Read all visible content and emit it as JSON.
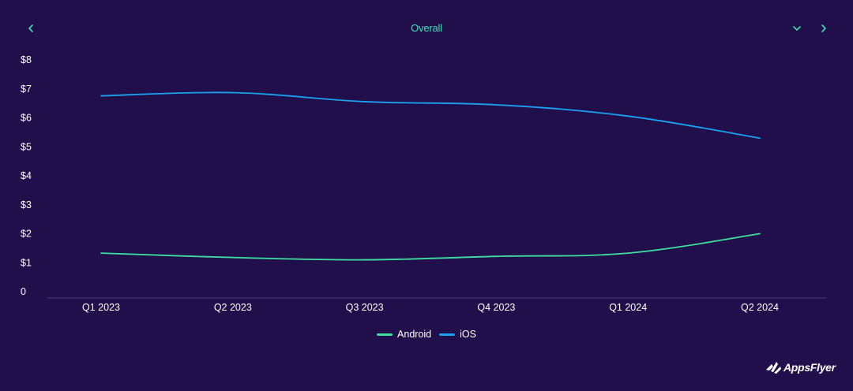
{
  "header": {
    "title": "Overall",
    "prev_icon": "chevron-left-icon",
    "dropdown_icon": "chevron-down-icon",
    "next_icon": "chevron-right-icon"
  },
  "colors": {
    "background": "#210f4b",
    "accent": "#3ee0b3",
    "android": "#3ee0a0",
    "ios": "#1aa3f0",
    "axis": "#4a3a7a"
  },
  "brand": {
    "name": "AppsFlyer",
    "icon": "appsflyer-logo-icon"
  },
  "chart_data": {
    "type": "line",
    "categories": [
      "Q1 2023",
      "Q2 2023",
      "Q3 2023",
      "Q4 2023",
      "Q1 2024",
      "Q2 2024"
    ],
    "series": [
      {
        "name": "Android",
        "values": [
          1.33,
          1.18,
          1.1,
          1.22,
          1.33,
          2.0
        ],
        "color": "#3ee0a0"
      },
      {
        "name": "iOS",
        "values": [
          6.76,
          6.87,
          6.56,
          6.45,
          6.06,
          5.3
        ],
        "color": "#1aa3f0"
      }
    ],
    "y_ticks": [
      "0",
      "$1",
      "$2",
      "$3",
      "$4",
      "$5",
      "$6",
      "$7",
      "$8"
    ],
    "ylim": [
      0,
      8
    ],
    "grid": false,
    "legend_position": "bottom-center",
    "title": "Overall",
    "xlabel": "",
    "ylabel": ""
  }
}
